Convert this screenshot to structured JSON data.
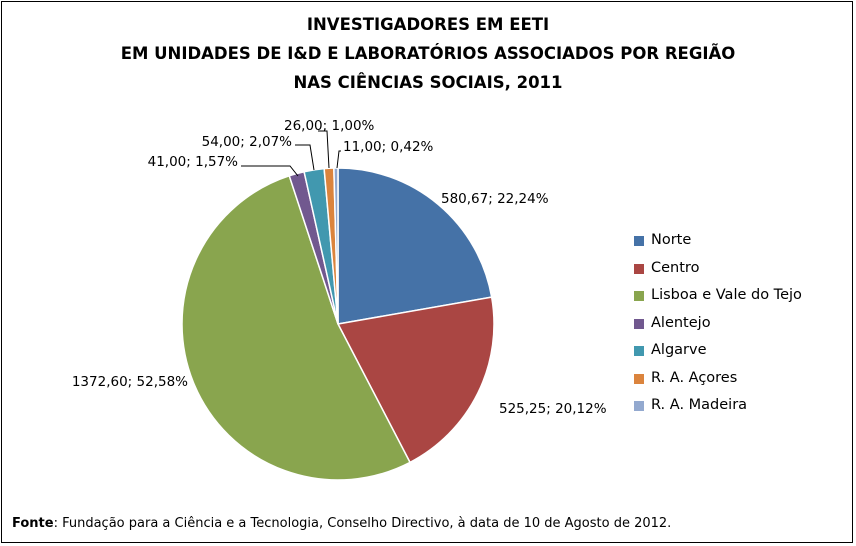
{
  "chart_data": {
    "type": "pie",
    "title_lines": [
      "INVESTIGADORES EM EETI",
      "EM UNIDADES DE I&D E LABORATÓRIOS ASSOCIADOS POR REGIÃO",
      "NAS CIÊNCIAS SOCIAIS, 2011"
    ],
    "categories": [
      "Norte",
      "Centro",
      "Lisboa e Vale do Tejo",
      "Alentejo",
      "Algarve",
      "R. A. Açores",
      "R. A. Madeira"
    ],
    "values": [
      580.67,
      525.25,
      1372.6,
      41.0,
      54.0,
      26.0,
      11.0
    ],
    "percents": [
      22.24,
      20.12,
      52.58,
      1.57,
      2.07,
      1.0,
      0.42
    ],
    "data_labels": [
      "580,67; 22,24%",
      "525,25; 20,12%",
      "1372,60; 52,58%",
      "41,00; 1,57%",
      "54,00; 2,07%",
      "26,00; 1,00%",
      "11,00; 0,42%"
    ],
    "colors": [
      "#4572A7",
      "#AA4643",
      "#89A54E",
      "#71588F",
      "#4198AF",
      "#DB843D",
      "#93A9CF"
    ],
    "legend_position": "right"
  },
  "source": {
    "label": "Fonte",
    "text": ": Fundação para a Ciência e a Tecnologia, Conselho Directivo, à data de 10 de Agosto de 2012."
  }
}
